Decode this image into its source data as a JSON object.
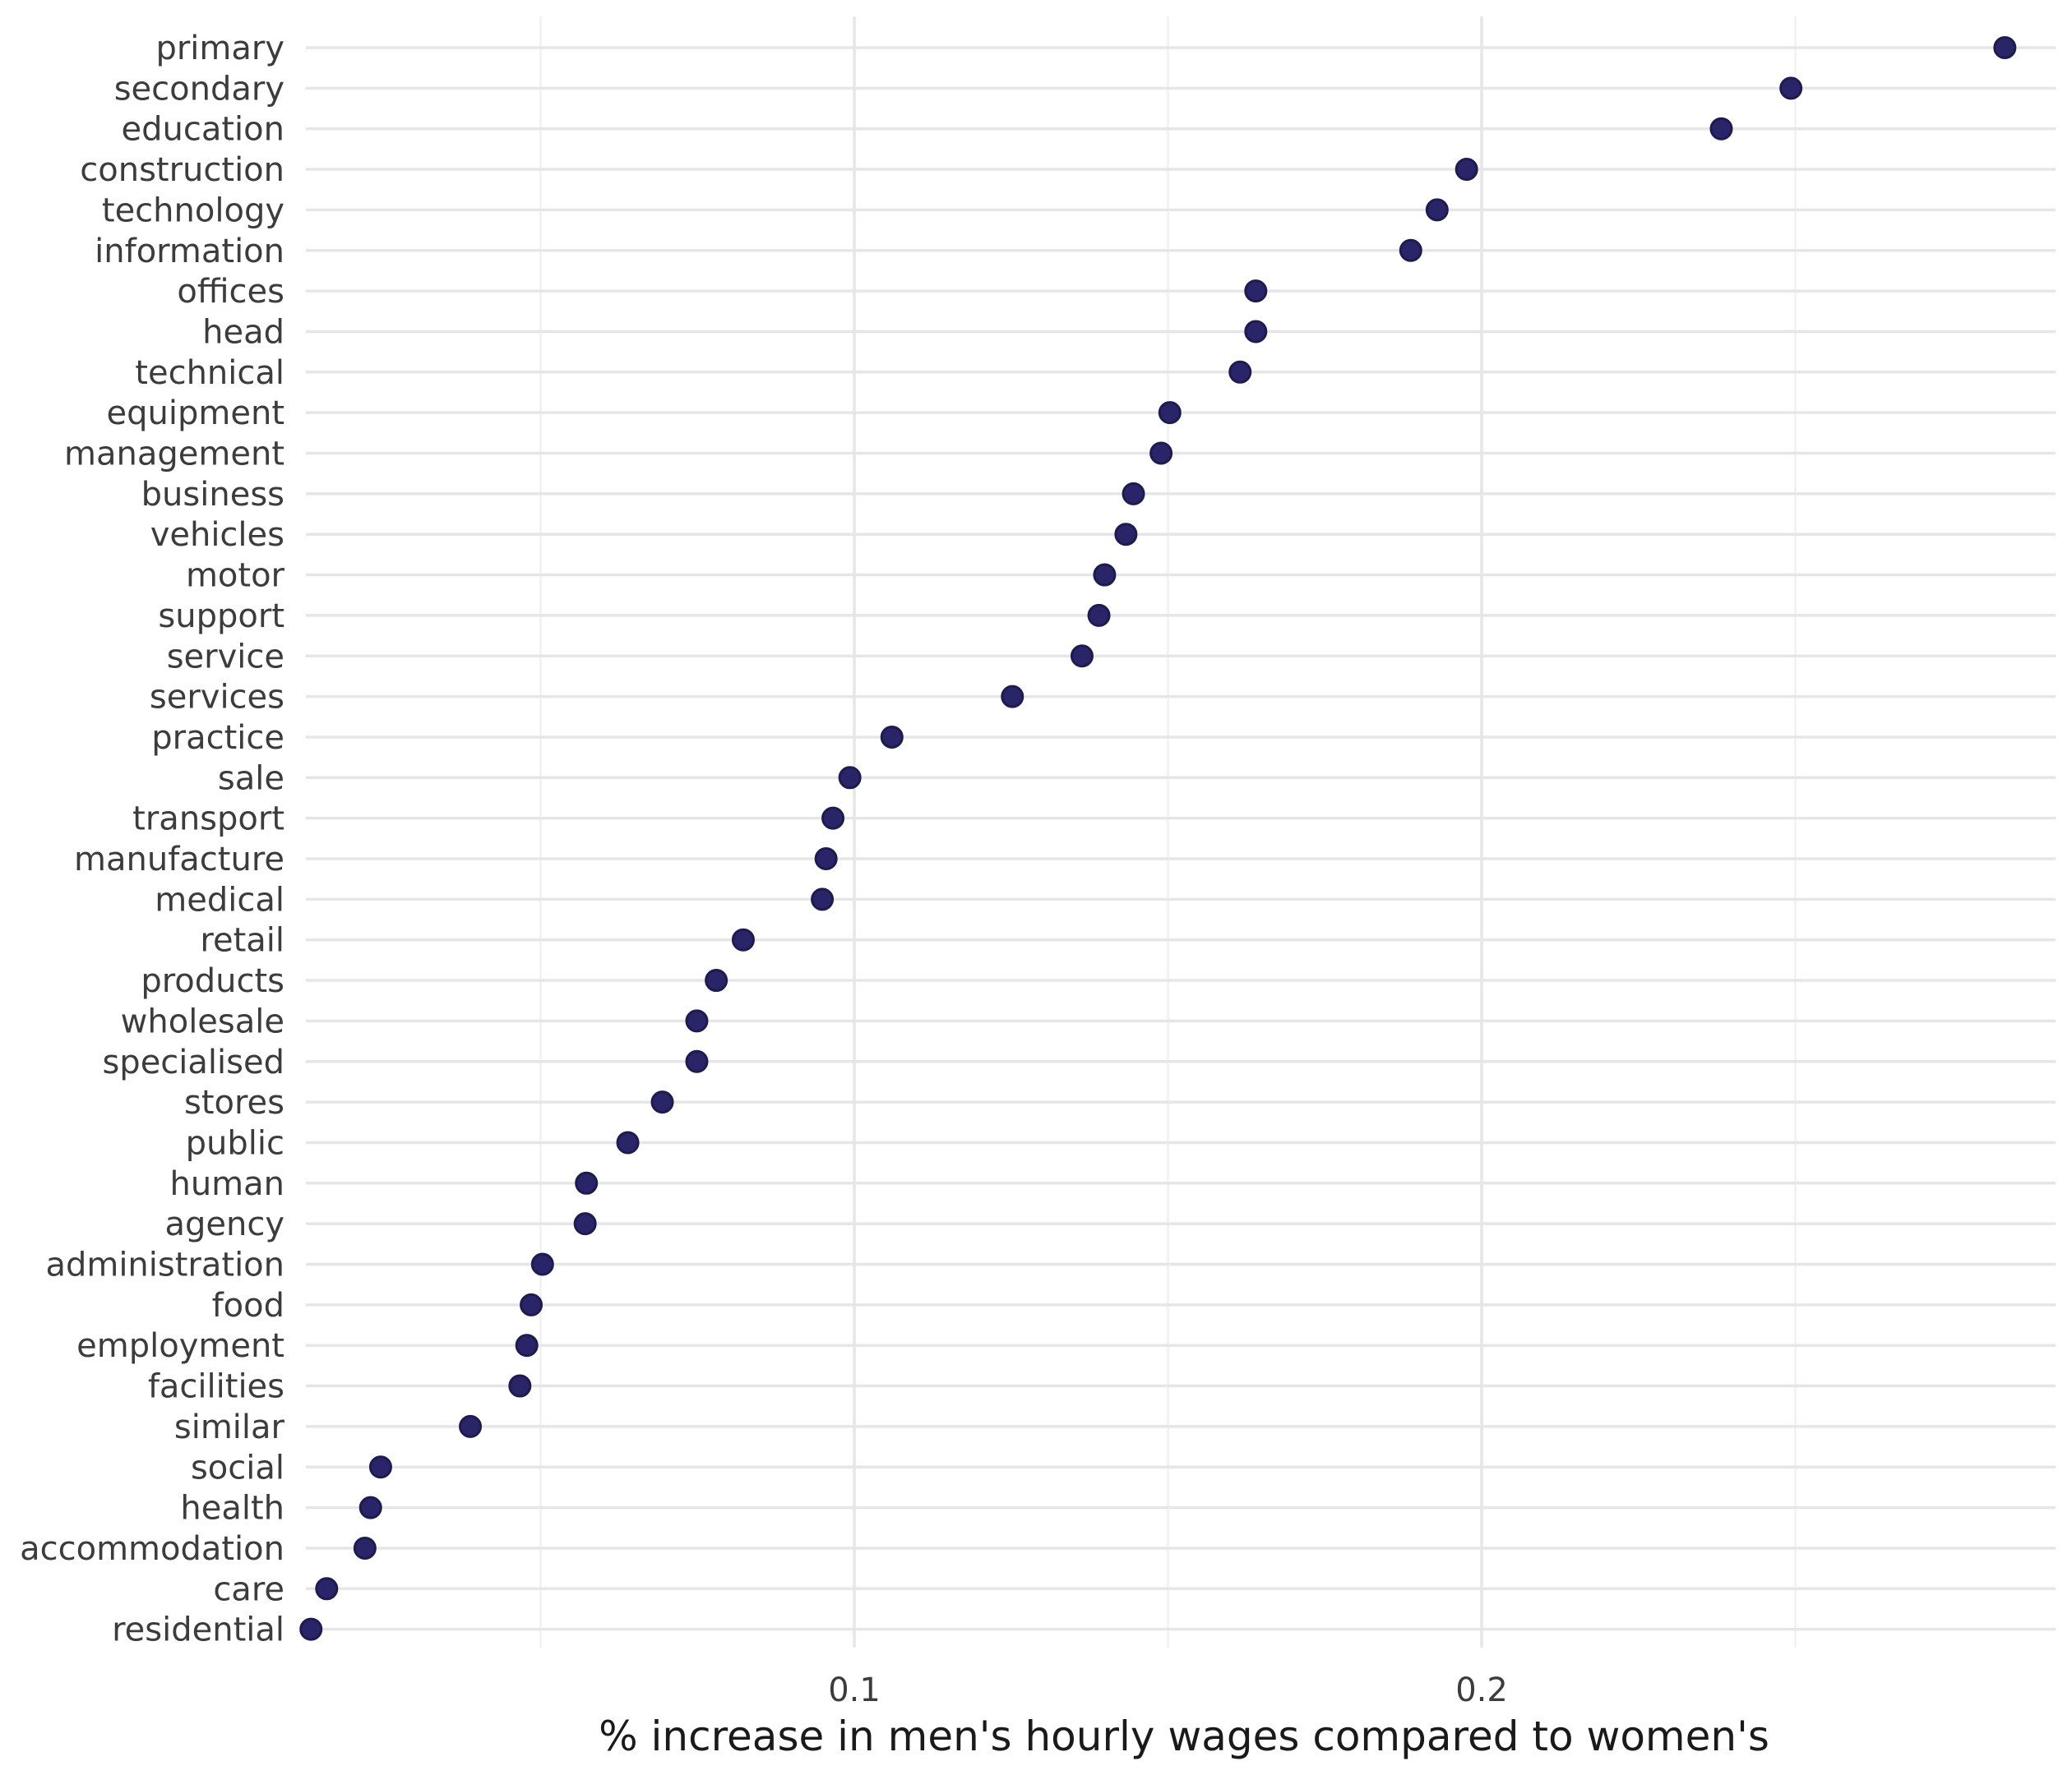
{
  "chart_data": {
    "type": "scatter",
    "title": "",
    "xlabel": "% increase in men's hourly wages compared to women's",
    "ylabel": "",
    "xlim": [
      0.0,
      0.3
    ],
    "x_ticks": [
      0.1,
      0.2
    ],
    "x_tick_labels": [
      "0.1",
      "0.2"
    ],
    "x_minor_ticks": [
      0.05,
      0.15,
      0.25
    ],
    "grid": true,
    "legend": "none",
    "point_color": "#2a2468",
    "categories": [
      "primary",
      "secondary",
      "education",
      "construction",
      "technology",
      "information",
      "offices",
      "head",
      "technical",
      "equipment",
      "management",
      "business",
      "vehicles",
      "motor",
      "support",
      "service",
      "services",
      "practice",
      "sale",
      "transport",
      "manufacture",
      "medical",
      "retail",
      "products",
      "wholesale",
      "specialised",
      "stores",
      "public",
      "human",
      "agency",
      "administration",
      "food",
      "employment",
      "facilities",
      "similar",
      "social",
      "health",
      "accommodation",
      "care",
      "residential"
    ],
    "values": [
      0.2834,
      0.2493,
      0.2382,
      0.1976,
      0.1929,
      0.1887,
      0.164,
      0.164,
      0.1615,
      0.1503,
      0.1489,
      0.1445,
      0.1433,
      0.1399,
      0.139,
      0.1363,
      0.1252,
      0.106,
      0.0993,
      0.0966,
      0.0955,
      0.0949,
      0.0823,
      0.078,
      0.0749,
      0.0749,
      0.0694,
      0.0639,
      0.0573,
      0.0571,
      0.0503,
      0.0485,
      0.0478,
      0.0467,
      0.0388,
      0.0245,
      0.0229,
      0.022,
      0.0159,
      0.0134
    ]
  }
}
